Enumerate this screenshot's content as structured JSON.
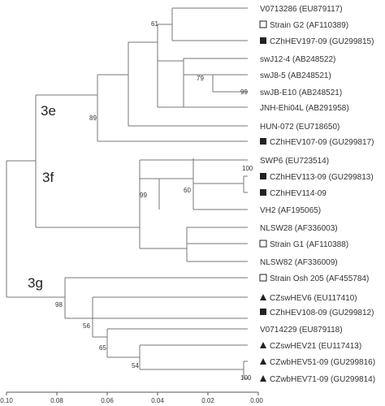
{
  "taxa": [
    {
      "label": "V0713286 (EU879117)",
      "marker": "none"
    },
    {
      "label": "Strain G2 (AF110389)",
      "marker": "open-square"
    },
    {
      "label": "CZhHEV197-09 (GU299815)",
      "marker": "filled-square"
    },
    {
      "label": "swJ12-4 (AB248522)",
      "marker": "none"
    },
    {
      "label": "swJ8-5 (AB248521)",
      "marker": "none"
    },
    {
      "label": "swJB-E10 (AB248521)",
      "marker": "none"
    },
    {
      "label": "JNH-Ehi04L (AB291958)",
      "marker": "none"
    },
    {
      "label": "HUN-072 (EU718650)",
      "marker": "none"
    },
    {
      "label": "CZhHEV107-09 (GU299817)",
      "marker": "filled-square"
    },
    {
      "label": "SWP6 (EU723514)",
      "marker": "none"
    },
    {
      "label": "CZhHEV113-09 (GU299813)",
      "marker": "filled-square"
    },
    {
      "label": "CZhHEV114-09",
      "marker": "filled-square"
    },
    {
      "label": "VH2 (AF195065)",
      "marker": "none"
    },
    {
      "label": "NLSW28 (AF336003)",
      "marker": "none"
    },
    {
      "label": "Strain G1 (AF110388)",
      "marker": "open-square"
    },
    {
      "label": "NLSW82 (AF336009)",
      "marker": "none"
    },
    {
      "label": "Strain Osh 205 (AF455784)",
      "marker": "open-square"
    },
    {
      "label": "CZswHEV6 (EU117410)",
      "marker": "filled-triangle"
    },
    {
      "label": "CZhHEV108-09 (GU299812)",
      "marker": "filled-square"
    },
    {
      "label": "V0714229 (EU879118)",
      "marker": "none"
    },
    {
      "label": "CZswHEV21 (EU117413)",
      "marker": "filled-triangle"
    },
    {
      "label": "CZwbHEV51-09 (GU299816)",
      "marker": "filled-triangle"
    },
    {
      "label": "CZwbHEV71-09 (GU299814)",
      "marker": "filled-triangle"
    }
  ],
  "clades": [
    {
      "label": "3e"
    },
    {
      "label": "3f"
    },
    {
      "label": "3g"
    }
  ],
  "bootstrap": [
    {
      "value": "61"
    },
    {
      "value": "79"
    },
    {
      "value": "99"
    },
    {
      "value": "89"
    },
    {
      "value": "100"
    },
    {
      "value": "60"
    },
    {
      "value": "99"
    },
    {
      "value": "98"
    },
    {
      "value": "56"
    },
    {
      "value": "65"
    },
    {
      "value": "54"
    },
    {
      "value": "100"
    }
  ],
  "axis": {
    "ticks": [
      "0.10",
      "0.08",
      "0.06",
      "0.04",
      "0.02",
      "0.00"
    ]
  },
  "colors": {
    "branch": "#777777",
    "text": "#333333",
    "marker": "#222222"
  }
}
